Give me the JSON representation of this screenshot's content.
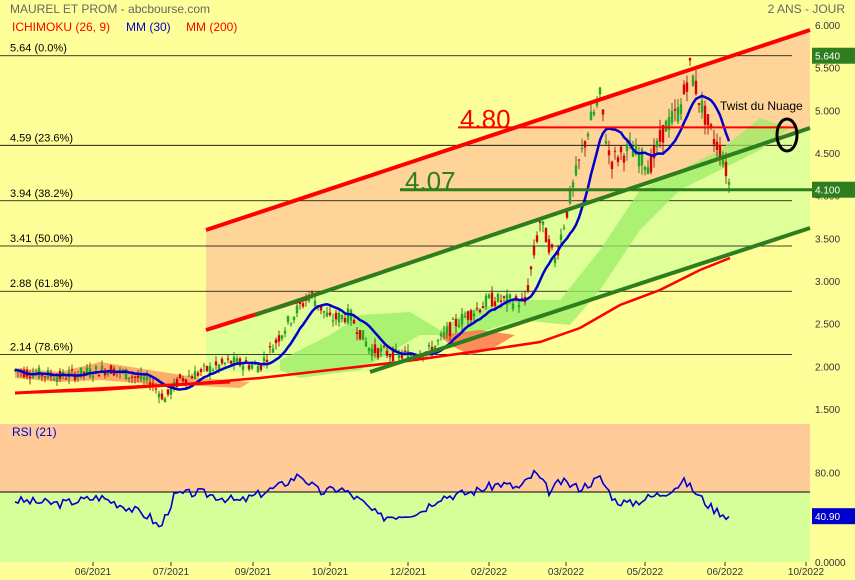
{
  "header": {
    "title": "MAUREL ET PROM - abcbourse.com",
    "period": "2 ANS - JOUR",
    "legend": [
      {
        "label": "ICHIMOKU (26, 9)",
        "color": "#ff0000"
      },
      {
        "label": "MM (30)",
        "color": "#0000cc"
      },
      {
        "label": "MM (200)",
        "color": "#ff0000"
      }
    ]
  },
  "chart_data": [
    {
      "type": "candlestick",
      "name": "price",
      "y_ticks": [
        "6.000",
        "5.500",
        "5.000",
        "4.500",
        "4.000",
        "3.500",
        "3.000",
        "2.500",
        "2.000",
        "1.500"
      ],
      "ylim": [
        1.3,
        6.1
      ],
      "x_ticks": [
        "06/2021",
        "07/2021",
        "09/2021",
        "10/2021",
        "12/2021",
        "02/2022",
        "03/2022",
        "05/2022",
        "06/2022",
        "10/2022"
      ],
      "last_price_label": "5.640",
      "last_close_label": "4.100",
      "fibonacci": [
        {
          "label": "5.64  (0.0%)",
          "value": 5.64
        },
        {
          "label": "4.59  (23.6%)",
          "value": 4.59
        },
        {
          "label": "3.94  (38.2%)",
          "value": 3.94
        },
        {
          "label": "3.41  (50.0%)",
          "value": 3.41
        },
        {
          "label": "2.88  (61.8%)",
          "value": 2.88
        },
        {
          "label": "2.14  (78.6%)",
          "value": 2.14
        }
      ],
      "annotations": [
        {
          "text": "4.80",
          "value": 4.8,
          "color": "#ff0000"
        },
        {
          "text": "4.07",
          "value": 4.07,
          "color": "#2e7d1e"
        },
        {
          "text": "Twist du Nuage",
          "color": "#000000"
        }
      ],
      "colors": {
        "up": "#22aa22",
        "down": "#dd0000",
        "mm30": "#0000cc",
        "mm200": "#ff0000",
        "channel_red": "#ff0000",
        "channel_green": "#2e7d1e",
        "cloud_bull": "#99ee66",
        "cloud_bear": "#ff6644"
      }
    },
    {
      "type": "line",
      "name": "RSI (21)",
      "y_ticks": [
        "80.00",
        "0.0000"
      ],
      "ylim": [
        0,
        100
      ],
      "last_label": "40.90",
      "series": [
        {
          "name": "RSI (21)",
          "color": "#0000cc"
        }
      ]
    }
  ]
}
